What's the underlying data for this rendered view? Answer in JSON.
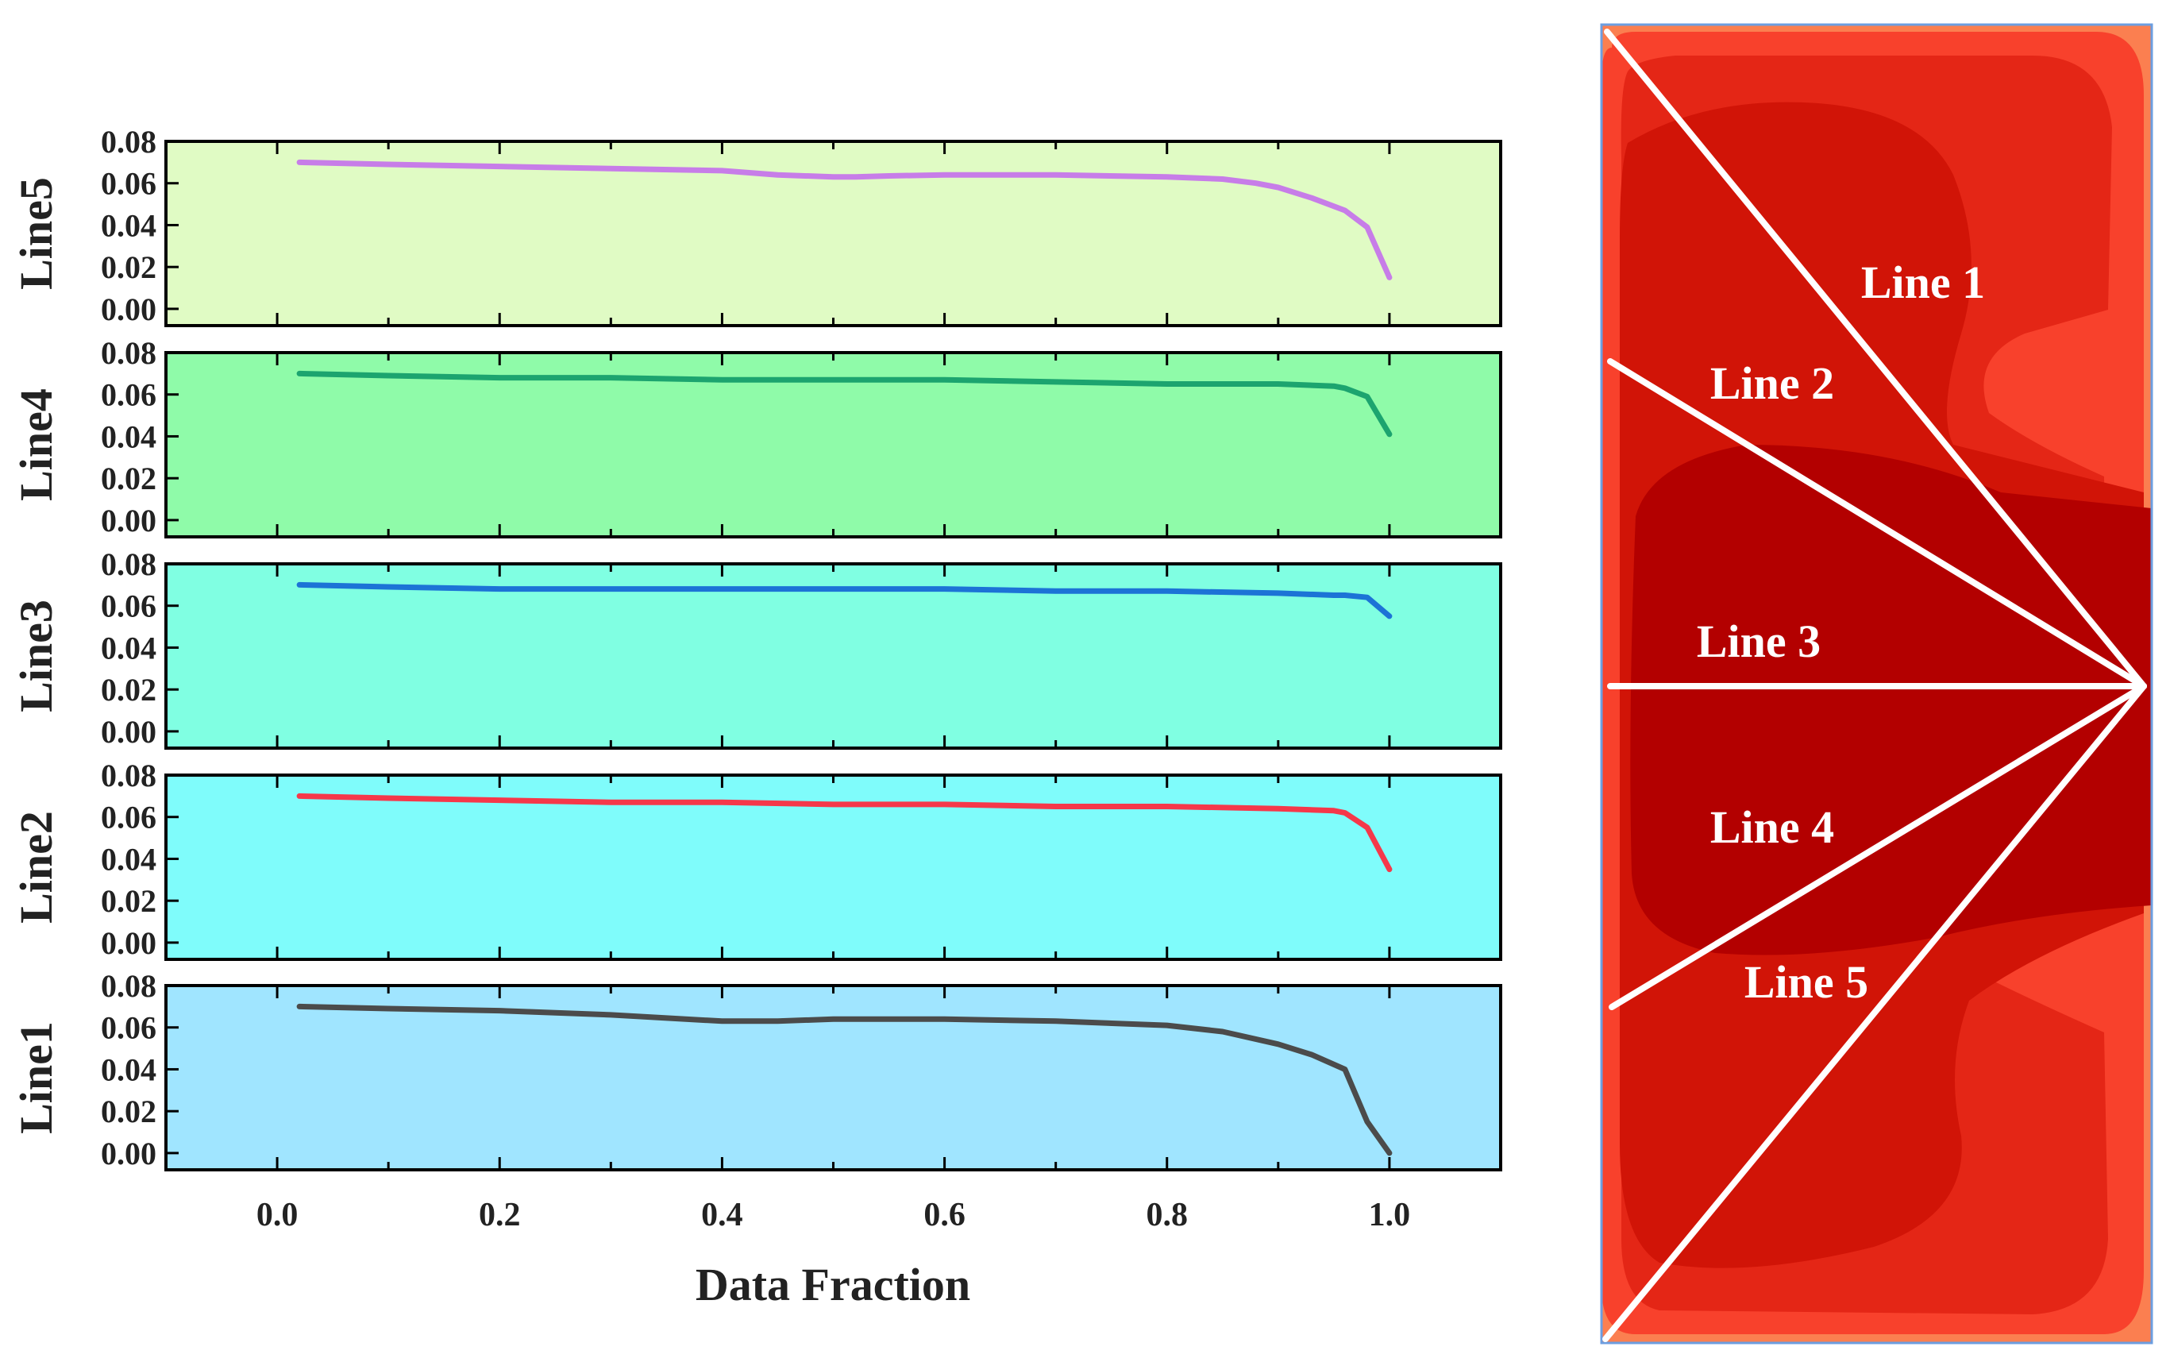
{
  "chart_data": [
    {
      "type": "line",
      "xlabel": "Data Fraction",
      "xlim": [
        -0.1,
        1.1
      ],
      "xticks": [
        0.0,
        0.2,
        0.4,
        0.6,
        0.8,
        1.0
      ],
      "xtick_labels": [
        "0.0",
        "0.2",
        "0.4",
        "0.6",
        "0.8",
        "1.0"
      ],
      "ylim": [
        -0.008,
        0.08
      ],
      "yticks": [
        0.0,
        0.02,
        0.04,
        0.06,
        0.08
      ],
      "ytick_labels": [
        "0.00",
        "0.02",
        "0.04",
        "0.06",
        "0.08"
      ],
      "grid": false,
      "panels": [
        {
          "ylabel": "Line5",
          "background": "#e0fbc4",
          "color": "#c77de8",
          "x": [
            0.02,
            0.1,
            0.2,
            0.3,
            0.4,
            0.45,
            0.5,
            0.52,
            0.55,
            0.6,
            0.7,
            0.8,
            0.85,
            0.88,
            0.9,
            0.93,
            0.96,
            0.98,
            1.0
          ],
          "y": [
            0.07,
            0.069,
            0.068,
            0.067,
            0.066,
            0.064,
            0.063,
            0.063,
            0.0635,
            0.064,
            0.064,
            0.063,
            0.062,
            0.06,
            0.058,
            0.053,
            0.047,
            0.039,
            0.015
          ]
        },
        {
          "ylabel": "Line4",
          "background": "#8ffba9",
          "color": "#1ca46f",
          "x": [
            0.02,
            0.1,
            0.2,
            0.3,
            0.4,
            0.5,
            0.6,
            0.7,
            0.8,
            0.9,
            0.95,
            0.96,
            0.98,
            1.0
          ],
          "y": [
            0.07,
            0.069,
            0.068,
            0.068,
            0.067,
            0.067,
            0.067,
            0.066,
            0.065,
            0.065,
            0.064,
            0.063,
            0.059,
            0.041
          ]
        },
        {
          "ylabel": "Line3",
          "background": "#80ffe2",
          "color": "#1c73d6",
          "x": [
            0.02,
            0.1,
            0.2,
            0.3,
            0.4,
            0.5,
            0.6,
            0.7,
            0.8,
            0.9,
            0.95,
            0.96,
            0.98,
            1.0
          ],
          "y": [
            0.07,
            0.069,
            0.068,
            0.068,
            0.068,
            0.068,
            0.068,
            0.067,
            0.067,
            0.066,
            0.065,
            0.065,
            0.064,
            0.055
          ]
        },
        {
          "ylabel": "Line2",
          "background": "#7ffcfb",
          "color": "#f5384a",
          "x": [
            0.02,
            0.1,
            0.2,
            0.3,
            0.4,
            0.5,
            0.6,
            0.7,
            0.8,
            0.9,
            0.95,
            0.96,
            0.98,
            1.0
          ],
          "y": [
            0.07,
            0.069,
            0.068,
            0.067,
            0.067,
            0.066,
            0.066,
            0.065,
            0.065,
            0.064,
            0.063,
            0.062,
            0.055,
            0.035
          ]
        },
        {
          "ylabel": "Line1",
          "background": "#a0e5ff",
          "color": "#4b4b4b",
          "x": [
            0.02,
            0.1,
            0.2,
            0.3,
            0.4,
            0.45,
            0.5,
            0.55,
            0.6,
            0.7,
            0.8,
            0.85,
            0.9,
            0.93,
            0.96,
            0.98,
            1.0
          ],
          "y": [
            0.07,
            0.069,
            0.068,
            0.066,
            0.063,
            0.063,
            0.064,
            0.064,
            0.064,
            0.063,
            0.061,
            0.058,
            0.052,
            0.047,
            0.04,
            0.015,
            0.0
          ]
        }
      ]
    }
  ],
  "inset": {
    "labels": [
      "Line 1",
      "Line 2",
      "Line 3",
      "Line 4",
      "Line 5"
    ],
    "line_color": "#ffffff",
    "border_color": "#6c9ee0",
    "colors": {
      "outer": "#fb7f50",
      "light": "#f8412c",
      "mid": "#e42616",
      "dark": "#d11407",
      "darkest": "#b30000"
    }
  }
}
